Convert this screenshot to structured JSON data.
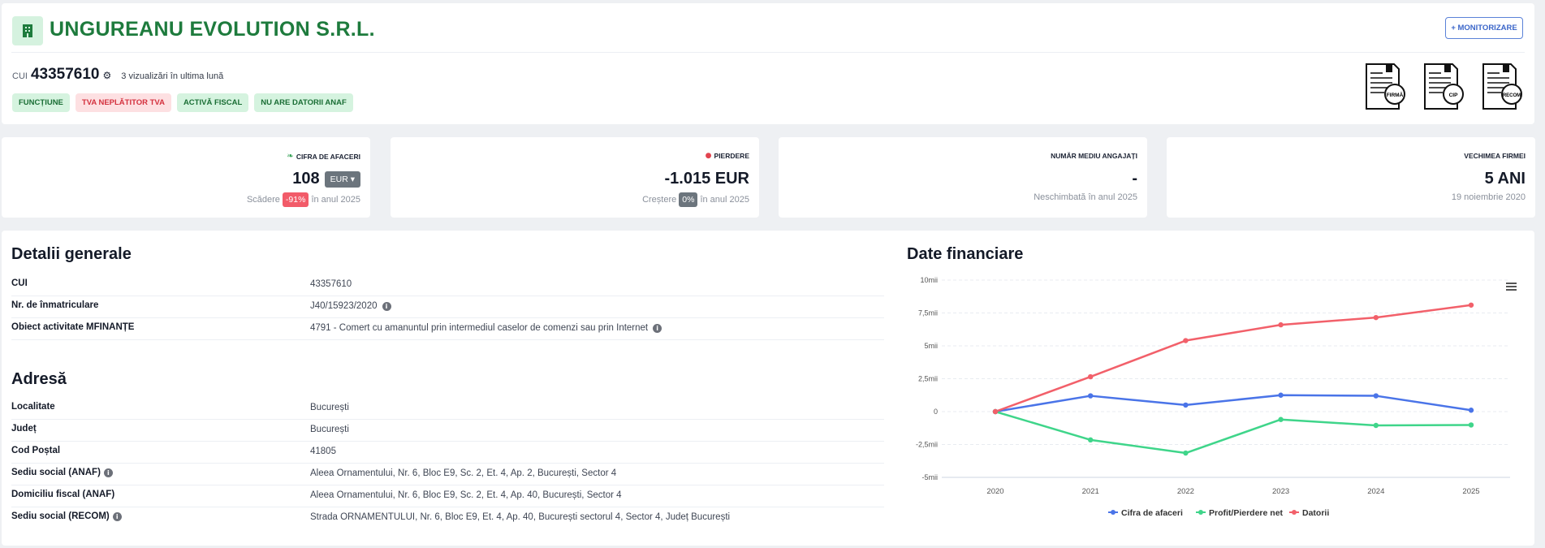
{
  "company": {
    "name": "UNGUREANU EVOLUTION S.R.L.",
    "cui_label": "CUI",
    "cui": "43357610",
    "views": "3 vizualizări în ultima lună",
    "monitor_button": "+ MONITORIZARE",
    "badges": [
      "FUNCȚIUNE",
      "TVA NEPLĂTITOR TVA",
      "ACTIVĂ FISCAL",
      "NU ARE DATORII ANAF"
    ],
    "documents": [
      "FIRMĂ",
      "CIP",
      "RECOM"
    ]
  },
  "stats": {
    "turnover": {
      "label": "CIFRA DE AFACERI",
      "value": "108",
      "currency": "EUR",
      "sub_prefix": "Scădere",
      "change": "-91%",
      "sub_suffix": "în anul 2025"
    },
    "loss": {
      "label": "PIERDERE",
      "value": "-1.015 EUR",
      "sub_prefix": "Creștere",
      "change": "0%",
      "sub_suffix": "în anul 2025"
    },
    "employees": {
      "label": "NUMĂR MEDIU ANGAJAȚI",
      "value": "-",
      "sub": "Neschimbată în anul 2025"
    },
    "age": {
      "label": "VECHIMEA FIRMEI",
      "value": "5 ANI",
      "sub": "19 noiembrie 2020"
    }
  },
  "details": {
    "title": "Detalii generale",
    "rows": [
      {
        "label": "CUI",
        "value": "43357610"
      },
      {
        "label": "Nr. de înmatriculare",
        "value": "J40/15923/2020"
      },
      {
        "label": "Obiect activitate MFINANȚE",
        "value": "4791 - Comert cu amanuntul prin intermediul caselor de comenzi sau prin Internet"
      }
    ]
  },
  "address": {
    "title": "Adresă",
    "rows": [
      {
        "label": "Localitate",
        "value": "București"
      },
      {
        "label": "Județ",
        "value": "București"
      },
      {
        "label": "Cod Poștal",
        "value": "41805"
      },
      {
        "label": "Sediu social (ANAF)",
        "value": "Aleea Ornamentului, Nr. 6, Bloc E9, Sc. 2, Et. 4, Ap. 2, București, Sector 4"
      },
      {
        "label": "Domiciliu fiscal (ANAF)",
        "value": "Aleea Ornamentului, Nr. 6, Bloc E9, Sc. 2, Et. 4, Ap. 40, București, Sector 4"
      },
      {
        "label": "Sediu social (RECOM)",
        "value": "Strada ORNAMENTULUI, Nr. 6, Bloc E9, Et. 4, Ap. 40, București sectorul 4, Sector 4, Județ București"
      }
    ]
  },
  "financial": {
    "title": "Date financiare"
  },
  "chart_data": {
    "type": "line",
    "x": [
      "2020",
      "2021",
      "2022",
      "2023",
      "2024",
      "2025"
    ],
    "y_ticks": [
      "10mii",
      "7,5mii",
      "5mii",
      "2,5mii",
      "0",
      "-2,5mii",
      "-5mii"
    ],
    "ylim": [
      -5000,
      10000
    ],
    "grid": true,
    "legend": "bottom",
    "series": [
      {
        "name": "Cifra de afaceri",
        "color": "#4a74e8",
        "values": [
          0,
          1200,
          500,
          1250,
          1200,
          108
        ]
      },
      {
        "name": "Profit/Pierdere net",
        "color": "#3fd58a",
        "values": [
          0,
          -2150,
          -3150,
          -600,
          -1050,
          -1015
        ]
      },
      {
        "name": "Datorii",
        "color": "#f2606a",
        "values": [
          0,
          2650,
          5400,
          6600,
          7150,
          8100
        ]
      }
    ]
  }
}
